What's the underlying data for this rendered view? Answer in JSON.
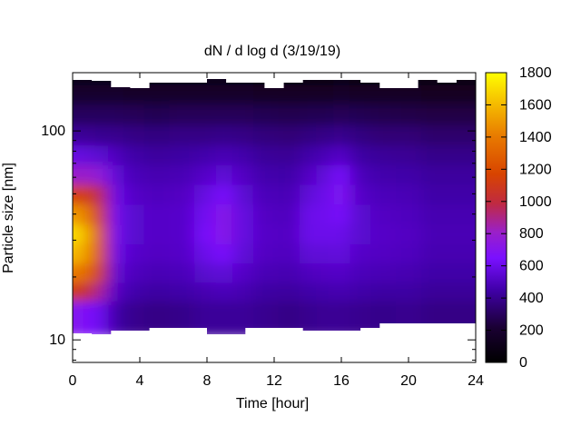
{
  "chart_data": {
    "type": "heatmap",
    "title": "dN / d log d (3/19/19)",
    "xlabel": "Time [hour]",
    "ylabel": "Particle size [nm]",
    "xlim": [
      0,
      24
    ],
    "x_ticks": [
      0,
      4,
      8,
      12,
      16,
      20,
      24
    ],
    "y_scale": "log",
    "ylim_nm": [
      7.8,
      190
    ],
    "y_ticks": [
      10,
      100
    ],
    "colorbar": {
      "range": [
        0,
        1800
      ],
      "ticks": [
        0,
        200,
        400,
        600,
        800,
        1000,
        1200,
        1400,
        1600,
        1800
      ],
      "palette": "black-purple-red-orange-yellow"
    },
    "size_bins_nm": [
      14,
      17,
      21,
      26,
      32,
      40,
      50,
      62,
      77,
      96,
      120,
      150,
      185
    ],
    "times_h": [
      0.25,
      1.0,
      1.75,
      2.5,
      3.5,
      5.0,
      6.5,
      8.0,
      9.0,
      10.0,
      11.5,
      13.0,
      14.0,
      15.0,
      16.0,
      17.0,
      18.5,
      20.0,
      21.5,
      23.0
    ],
    "values": [
      [
        700,
        650,
        600,
        450,
        400,
        380,
        390,
        420,
        420,
        420,
        400,
        380,
        400,
        410,
        410,
        400,
        390,
        400,
        380,
        380
      ],
      [
        1100,
        1000,
        850,
        520,
        460,
        440,
        450,
        470,
        490,
        470,
        440,
        430,
        450,
        460,
        470,
        450,
        440,
        440,
        420,
        420
      ],
      [
        1400,
        1300,
        1050,
        560,
        500,
        480,
        490,
        540,
        560,
        520,
        480,
        470,
        500,
        510,
        520,
        490,
        480,
        470,
        450,
        450
      ],
      [
        1600,
        1450,
        1150,
        600,
        530,
        510,
        520,
        600,
        650,
        560,
        510,
        500,
        560,
        560,
        570,
        520,
        510,
        500,
        470,
        470
      ],
      [
        1700,
        1500,
        1150,
        620,
        540,
        520,
        530,
        640,
        720,
        580,
        520,
        510,
        600,
        600,
        600,
        540,
        520,
        510,
        480,
        480
      ],
      [
        1500,
        1350,
        1050,
        620,
        540,
        520,
        530,
        620,
        720,
        580,
        510,
        500,
        600,
        610,
        640,
        540,
        510,
        500,
        470,
        470
      ],
      [
        1150,
        1100,
        950,
        600,
        520,
        500,
        510,
        580,
        650,
        550,
        490,
        480,
        560,
        600,
        680,
        520,
        490,
        480,
        450,
        450
      ],
      [
        800,
        800,
        750,
        560,
        490,
        470,
        480,
        520,
        560,
        510,
        460,
        450,
        510,
        560,
        640,
        490,
        460,
        450,
        430,
        430
      ],
      [
        580,
        560,
        540,
        500,
        450,
        430,
        440,
        460,
        480,
        460,
        420,
        410,
        450,
        480,
        520,
        440,
        420,
        410,
        390,
        390
      ],
      [
        420,
        410,
        400,
        400,
        380,
        370,
        380,
        380,
        390,
        380,
        360,
        350,
        370,
        380,
        400,
        370,
        350,
        350,
        330,
        330
      ],
      [
        300,
        300,
        300,
        300,
        290,
        280,
        290,
        290,
        290,
        290,
        280,
        270,
        280,
        280,
        290,
        280,
        270,
        260,
        250,
        250
      ],
      [
        190,
        190,
        190,
        190,
        180,
        180,
        180,
        180,
        180,
        180,
        170,
        170,
        170,
        170,
        180,
        170,
        160,
        160,
        150,
        150
      ],
      [
        80,
        80,
        80,
        80,
        75,
        75,
        75,
        75,
        75,
        75,
        70,
        70,
        70,
        70,
        75,
        70,
        65,
        65,
        60,
        60
      ]
    ]
  }
}
